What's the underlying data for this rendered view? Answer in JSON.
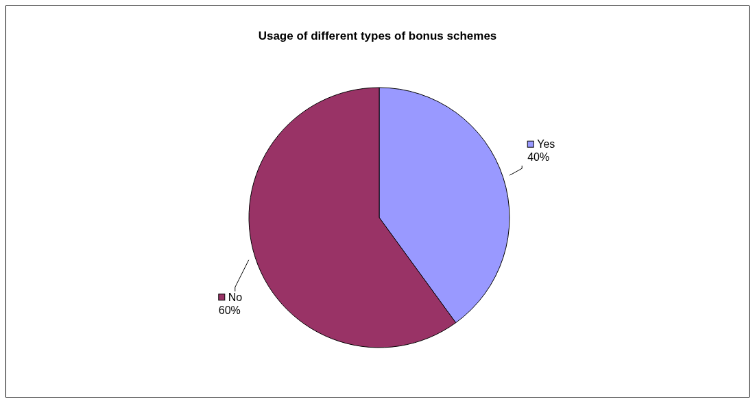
{
  "chart_data": {
    "type": "pie",
    "title": "Usage of different types of bonus schemes",
    "categories": [
      "Yes",
      "No"
    ],
    "values": [
      40,
      60
    ],
    "colors": [
      "#9999ff",
      "#993366"
    ],
    "value_labels": [
      "40%",
      "60%"
    ],
    "data_labels": true,
    "legend": "right"
  }
}
